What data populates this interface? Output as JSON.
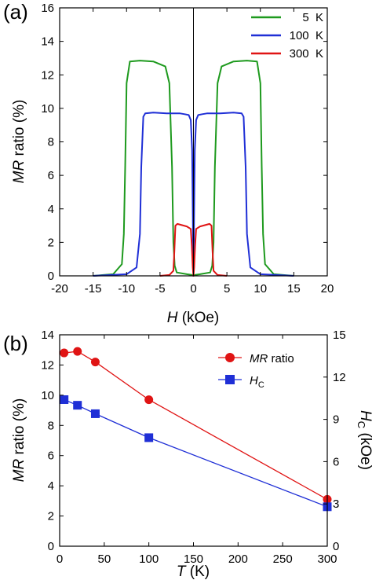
{
  "chart_data": [
    {
      "type": "line",
      "panel_label": "(a)",
      "xlabel": {
        "italic": "H",
        "rest": " (kOe)"
      },
      "ylabel": {
        "italic": "MR",
        "rest": " ratio (%)"
      },
      "xlim": [
        -20,
        20
      ],
      "ylim": [
        0,
        16
      ],
      "x_ticks": [
        -20,
        -15,
        -10,
        -5,
        0,
        5,
        10,
        15,
        20
      ],
      "y_ticks": [
        0,
        2,
        4,
        6,
        8,
        10,
        12,
        14,
        16
      ],
      "x_tick_labels": [
        "-20",
        "-15",
        "-10",
        "-5",
        "0",
        "5",
        "10",
        "15",
        "20"
      ],
      "y_tick_labels": [
        "0",
        "2",
        "4",
        "6",
        "8",
        "10",
        "12",
        "14",
        "16"
      ],
      "grid": false,
      "legend_position": "top-right",
      "series": [
        {
          "name": "5  K",
          "color": "#1e9a1e",
          "x": [
            -15,
            -12,
            -10.7,
            -10.4,
            -10.2,
            -10.0,
            -9.5,
            -8,
            -6,
            -4.2,
            -3.6,
            -3.2,
            -3.0,
            -2.8,
            -2.5,
            -1,
            -0.2,
            0,
            0.2,
            1,
            2.5,
            2.8,
            3.0,
            3.2,
            3.6,
            4.2,
            6,
            8,
            9.5,
            10.0,
            10.2,
            10.4,
            10.7,
            12,
            15
          ],
          "y": [
            0,
            0.1,
            0.7,
            2.5,
            6.5,
            11.5,
            12.8,
            12.85,
            12.8,
            12.5,
            11.5,
            6.5,
            2.0,
            0.6,
            0.2,
            0.1,
            0.05,
            0,
            0.05,
            0.1,
            0.2,
            0.6,
            2.0,
            6.5,
            11.5,
            12.5,
            12.8,
            12.85,
            12.8,
            11.5,
            6.5,
            2.5,
            0.7,
            0.1,
            0
          ]
        },
        {
          "name": "100  K",
          "color": "#1f2fd6",
          "x": [
            -15,
            -10,
            -8.5,
            -8.0,
            -7.8,
            -7.5,
            -7.2,
            -6,
            -4,
            -2,
            -1.3,
            -0.7,
            -0.4,
            -0.2,
            0,
            0.2,
            0.4,
            0.7,
            1.3,
            2,
            4,
            6,
            7.2,
            7.5,
            7.8,
            8.0,
            8.5,
            10,
            15
          ],
          "y": [
            0,
            0.1,
            0.5,
            2.5,
            6.5,
            9.5,
            9.7,
            9.75,
            9.7,
            9.7,
            9.65,
            9.6,
            9.3,
            7.5,
            0,
            7.5,
            9.3,
            9.6,
            9.65,
            9.7,
            9.7,
            9.75,
            9.7,
            9.5,
            6.5,
            2.5,
            0.5,
            0.1,
            0
          ]
        },
        {
          "name": "300  K",
          "color": "#e01414",
          "x": [
            -5,
            -3.6,
            -3.0,
            -2.85,
            -2.7,
            -2.4,
            -1,
            -0.4,
            -0.25,
            -0.1,
            0,
            0.1,
            0.25,
            0.4,
            1,
            2.4,
            2.7,
            2.85,
            3.0,
            3.6,
            5
          ],
          "y": [
            0,
            0.05,
            0.3,
            1.5,
            3.0,
            3.1,
            2.95,
            2.8,
            1.8,
            0.5,
            0,
            0.5,
            1.8,
            2.8,
            2.95,
            3.1,
            3.0,
            1.5,
            0.3,
            0.05,
            0
          ]
        }
      ]
    },
    {
      "type": "line",
      "panel_label": "(b)",
      "xlabel": {
        "italic": "T",
        "rest": " (K)"
      },
      "ylabel_left": {
        "italic": "MR",
        "rest": " ratio (%)"
      },
      "ylabel_right": {
        "italic": "H",
        "sub": "C",
        "rest": " (kOe)"
      },
      "xlim": [
        0,
        300
      ],
      "ylim_left": [
        0,
        14
      ],
      "ylim_right": [
        0,
        15
      ],
      "x_ticks": [
        0,
        50,
        100,
        150,
        200,
        250,
        300
      ],
      "x_tick_labels": [
        "0",
        "50",
        "100",
        "150",
        "200",
        "250",
        "300"
      ],
      "y_ticks_left": [
        0,
        2,
        4,
        6,
        8,
        10,
        12,
        14
      ],
      "y_tick_labels_left": [
        "0",
        "2",
        "4",
        "6",
        "8",
        "10",
        "12",
        "14"
      ],
      "y_ticks_right": [
        0,
        3,
        6,
        9,
        12,
        15
      ],
      "y_tick_labels_right": [
        "0",
        "3",
        "6",
        "9",
        "12",
        "15"
      ],
      "grid": false,
      "legend_position": "top-right",
      "series": [
        {
          "name": "MR ratio",
          "name_italic": "MR",
          "name_rest": " ratio",
          "axis": "left",
          "marker": "circle",
          "color": "#e01414",
          "x": [
            5,
            20,
            40,
            100,
            300
          ],
          "y": [
            12.8,
            12.9,
            12.2,
            9.7,
            3.1
          ]
        },
        {
          "name": "HC",
          "name_italic": "H",
          "name_sub": "C",
          "axis": "right",
          "marker": "square",
          "color": "#1f2fd6",
          "x": [
            5,
            20,
            40,
            100,
            300
          ],
          "y": [
            10.4,
            10.0,
            9.4,
            7.7,
            2.8
          ]
        }
      ]
    }
  ]
}
